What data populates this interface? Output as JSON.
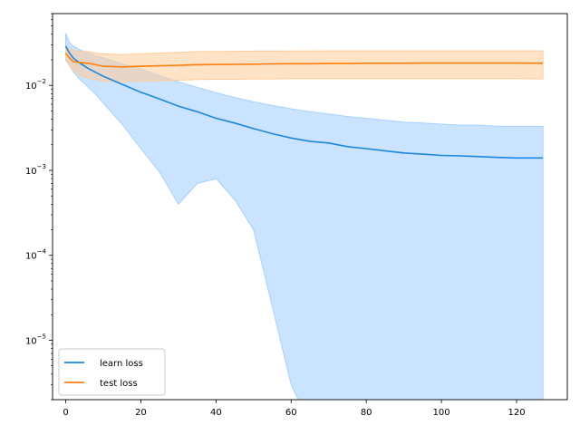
{
  "chart_data": {
    "type": "line",
    "title": "",
    "xlabel": "",
    "ylabel": "",
    "xlim": [
      -3.5,
      133.5
    ],
    "ylim": [
      2e-06,
      0.07
    ],
    "yscale": "log",
    "grid": false,
    "legend_position": "lower-left",
    "x_ticks": [
      {
        "value": 0,
        "label": "0"
      },
      {
        "value": 20,
        "label": "20"
      },
      {
        "value": 40,
        "label": "40"
      },
      {
        "value": 60,
        "label": "60"
      },
      {
        "value": 80,
        "label": "80"
      },
      {
        "value": 100,
        "label": "100"
      },
      {
        "value": 120,
        "label": "120"
      }
    ],
    "y_ticks": [
      {
        "value": 0.01,
        "base": "10",
        "exp": "−2"
      },
      {
        "value": 0.001,
        "base": "10",
        "exp": "−3"
      },
      {
        "value": 0.0001,
        "base": "10",
        "exp": "−4"
      },
      {
        "value": 1e-05,
        "base": "10",
        "exp": "−5"
      }
    ],
    "series": [
      {
        "name": "learn loss",
        "color": "#1a87e0",
        "band_color": "#a6d1ff",
        "x": [
          0,
          1,
          2,
          4,
          6,
          8,
          10,
          15,
          20,
          25,
          30,
          35,
          40,
          45,
          50,
          55,
          60,
          65,
          70,
          75,
          80,
          85,
          90,
          95,
          100,
          105,
          110,
          115,
          120,
          127
        ],
        "mean": [
          0.029,
          0.024,
          0.021,
          0.018,
          0.0158,
          0.0142,
          0.0128,
          0.0103,
          0.0083,
          0.0069,
          0.0057,
          0.0049,
          0.0041,
          0.0036,
          0.0031,
          0.0027,
          0.0024,
          0.0022,
          0.0021,
          0.0019,
          0.0018,
          0.0017,
          0.0016,
          0.00155,
          0.0015,
          0.00148,
          0.00145,
          0.00142,
          0.0014,
          0.0014
        ],
        "lower": [
          0.02,
          0.017,
          0.0145,
          0.0115,
          0.0095,
          0.0078,
          0.0062,
          0.0035,
          0.0018,
          0.00095,
          0.0004,
          0.0007,
          0.0008,
          0.00045,
          0.0002,
          2.5e-05,
          3e-06,
          1e-06,
          1e-06,
          1e-06,
          1e-06,
          1e-06,
          1e-06,
          1e-06,
          1e-06,
          1e-06,
          1e-06,
          1e-06,
          1e-06,
          1e-06
        ],
        "upper": [
          0.041,
          0.032,
          0.029,
          0.026,
          0.024,
          0.022,
          0.021,
          0.018,
          0.0155,
          0.013,
          0.011,
          0.0095,
          0.0082,
          0.0072,
          0.0064,
          0.0058,
          0.0053,
          0.0049,
          0.0046,
          0.0043,
          0.0041,
          0.0039,
          0.0037,
          0.0036,
          0.0035,
          0.0034,
          0.0034,
          0.0033,
          0.0033,
          0.0033
        ]
      },
      {
        "name": "test loss",
        "color": "#ff7f0e",
        "band_color": "#ffcc99",
        "x": [
          0,
          1,
          2,
          4,
          6,
          8,
          10,
          15,
          20,
          25,
          30,
          35,
          40,
          45,
          50,
          55,
          60,
          65,
          70,
          75,
          80,
          85,
          90,
          95,
          100,
          105,
          110,
          115,
          120,
          127
        ],
        "mean": [
          0.024,
          0.021,
          0.019,
          0.0185,
          0.0182,
          0.0175,
          0.0168,
          0.0165,
          0.0168,
          0.017,
          0.0172,
          0.0175,
          0.0176,
          0.0177,
          0.0178,
          0.0179,
          0.018,
          0.018,
          0.0181,
          0.0181,
          0.0182,
          0.0182,
          0.0182,
          0.0183,
          0.0183,
          0.0183,
          0.0183,
          0.0183,
          0.0183,
          0.0182
        ],
        "lower": [
          0.021,
          0.017,
          0.015,
          0.013,
          0.0122,
          0.0118,
          0.0112,
          0.011,
          0.0112,
          0.0113,
          0.0115,
          0.0117,
          0.0118,
          0.0118,
          0.0119,
          0.0119,
          0.012,
          0.012,
          0.012,
          0.012,
          0.012,
          0.012,
          0.012,
          0.012,
          0.012,
          0.012,
          0.012,
          0.012,
          0.012,
          0.0119
        ],
        "upper": [
          0.028,
          0.027,
          0.026,
          0.025,
          0.025,
          0.024,
          0.0235,
          0.023,
          0.0235,
          0.024,
          0.0245,
          0.025,
          0.025,
          0.0252,
          0.0253,
          0.0253,
          0.0254,
          0.0254,
          0.0255,
          0.0255,
          0.0255,
          0.0255,
          0.0255,
          0.0255,
          0.0255,
          0.0255,
          0.0255,
          0.0255,
          0.0255,
          0.0255
        ]
      }
    ]
  }
}
